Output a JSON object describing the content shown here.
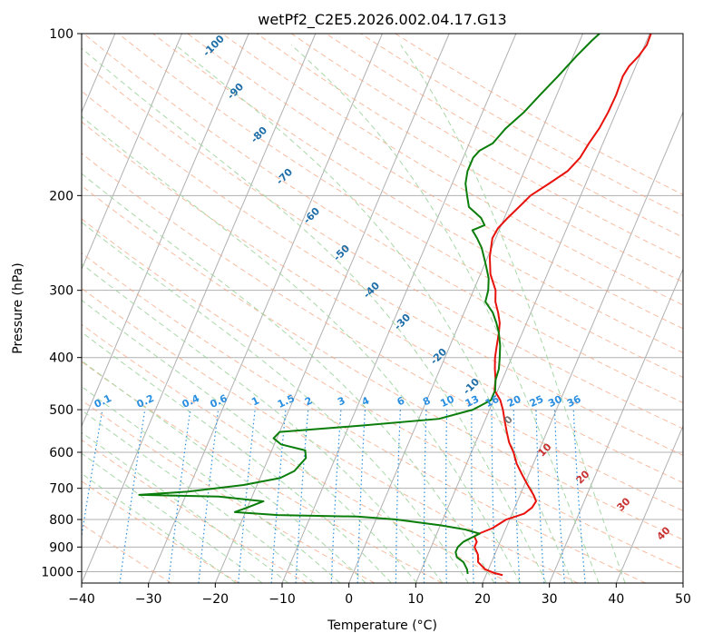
{
  "chart_data": {
    "type": "line",
    "title": "wetPf2_C2E5.2026.002.04.17.G13",
    "xlabel": "Temperature (°C)",
    "ylabel": "Pressure (hPa)",
    "xlim": [
      -40,
      50
    ],
    "ylim": [
      1050,
      100
    ],
    "y_scale": "log",
    "x_ticks": [
      -40,
      -30,
      -20,
      -10,
      0,
      10,
      20,
      30,
      40,
      50
    ],
    "y_ticks": [
      1000,
      900,
      800,
      700,
      600,
      500,
      400,
      300,
      200,
      100
    ],
    "grid": true,
    "colors": {
      "temperature": "#e8120c",
      "dewpoint": "#0a7d0a",
      "mixing": "#2b8fe0",
      "dry": "#f4a582",
      "moist": "#9fd49f",
      "skew": "#b0b0b0"
    },
    "series": [
      {
        "name": "",
        "color": "#e8120c",
        "points": [
          [
            22.5,
            1015
          ],
          [
            21,
            1005
          ],
          [
            19.5,
            990
          ],
          [
            18,
            960
          ],
          [
            17.5,
            930
          ],
          [
            16.5,
            900
          ],
          [
            16.5,
            880
          ],
          [
            15.8,
            860
          ],
          [
            16.3,
            850
          ],
          [
            18,
            830
          ],
          [
            19.5,
            800
          ],
          [
            21.8,
            780
          ],
          [
            22.6,
            760
          ],
          [
            22.8,
            740
          ],
          [
            22,
            720
          ],
          [
            20.5,
            690
          ],
          [
            19,
            660
          ],
          [
            17.5,
            630
          ],
          [
            16.3,
            600
          ],
          [
            15,
            575
          ],
          [
            14,
            550
          ],
          [
            13,
            525
          ],
          [
            12,
            500
          ],
          [
            11,
            480
          ],
          [
            9.5,
            460
          ],
          [
            9.0,
            440
          ],
          [
            8.2,
            420
          ],
          [
            7.5,
            400
          ],
          [
            7.0,
            380
          ],
          [
            6.5,
            360
          ],
          [
            6,
            345
          ],
          [
            5.1,
            330
          ],
          [
            4.0,
            315
          ],
          [
            3.3,
            300
          ],
          [
            1.5,
            280
          ],
          [
            0.3,
            260
          ],
          [
            -0.5,
            240
          ],
          [
            -0.3,
            230
          ],
          [
            0.5,
            220
          ],
          [
            1.5,
            210
          ],
          [
            2.5,
            200
          ],
          [
            4.5,
            190
          ],
          [
            6.5,
            180
          ],
          [
            7.5,
            170
          ],
          [
            7.9,
            160
          ],
          [
            8.5,
            150
          ],
          [
            8.8,
            140
          ],
          [
            8.9,
            130
          ],
          [
            8.7,
            120
          ],
          [
            9.0,
            115
          ],
          [
            9.8,
            110
          ],
          [
            10.3,
            105
          ],
          [
            10.2,
            100
          ]
        ]
      },
      {
        "name": "",
        "color": "#0a7d0a",
        "points": [
          [
            17.2,
            1010
          ],
          [
            16.8,
            990
          ],
          [
            15.8,
            960
          ],
          [
            14.5,
            940
          ],
          [
            14.0,
            920
          ],
          [
            14.0,
            900
          ],
          [
            14.5,
            880
          ],
          [
            16.4,
            850
          ],
          [
            14,
            835
          ],
          [
            10,
            820
          ],
          [
            3,
            800
          ],
          [
            -3,
            790
          ],
          [
            -15,
            785
          ],
          [
            -21.6,
            775
          ],
          [
            -20,
            760
          ],
          [
            -18,
            740
          ],
          [
            -25,
            725
          ],
          [
            -37,
            720
          ],
          [
            -30,
            710
          ],
          [
            -22,
            690
          ],
          [
            -17,
            670
          ],
          [
            -15.3,
            650
          ],
          [
            -14.8,
            630
          ],
          [
            -14.4,
            615
          ],
          [
            -15,
            595
          ],
          [
            -19,
            580
          ],
          [
            -20.5,
            565
          ],
          [
            -20,
            550
          ],
          [
            -8,
            535
          ],
          [
            3,
            520
          ],
          [
            7.5,
            500
          ],
          [
            9.6,
            480
          ],
          [
            9.6,
            460
          ],
          [
            9.0,
            440
          ],
          [
            8.8,
            420
          ],
          [
            8.2,
            400
          ],
          [
            7.5,
            380
          ],
          [
            6.5,
            360
          ],
          [
            5.5,
            345
          ],
          [
            4.3,
            330
          ],
          [
            2.5,
            315
          ],
          [
            2.2,
            300
          ],
          [
            1.5,
            285
          ],
          [
            0.3,
            270
          ],
          [
            -1.5,
            250
          ],
          [
            -2.8,
            240
          ],
          [
            -4,
            232
          ],
          [
            -2.5,
            227
          ],
          [
            -3.5,
            220
          ],
          [
            -6,
            210
          ],
          [
            -7,
            200
          ],
          [
            -8,
            190
          ],
          [
            -8.5,
            180
          ],
          [
            -8.5,
            170
          ],
          [
            -8,
            165
          ],
          [
            -6.5,
            160
          ],
          [
            -6,
            155
          ],
          [
            -5.5,
            150
          ],
          [
            -3.8,
            140
          ],
          [
            -2.5,
            130
          ],
          [
            -1,
            120
          ],
          [
            0.5,
            110
          ],
          [
            1.8,
            103
          ],
          [
            2.5,
            100
          ]
        ]
      }
    ],
    "mixing_ratio_labels": [
      "0.1",
      "0.2",
      "0.4",
      "0.6",
      "1",
      "1.5",
      "2",
      "3",
      "4",
      "6",
      "8",
      "10",
      "13",
      "16",
      "20",
      "25",
      "30",
      "36"
    ],
    "dry_adiabat_labels": [
      "-100",
      "-90",
      "-80",
      "-70",
      "-60",
      "-50",
      "-40",
      "-30",
      "-20",
      "-10"
    ],
    "moist_adiabat_labels": [
      "0",
      "10",
      "20",
      "30",
      "40"
    ]
  }
}
